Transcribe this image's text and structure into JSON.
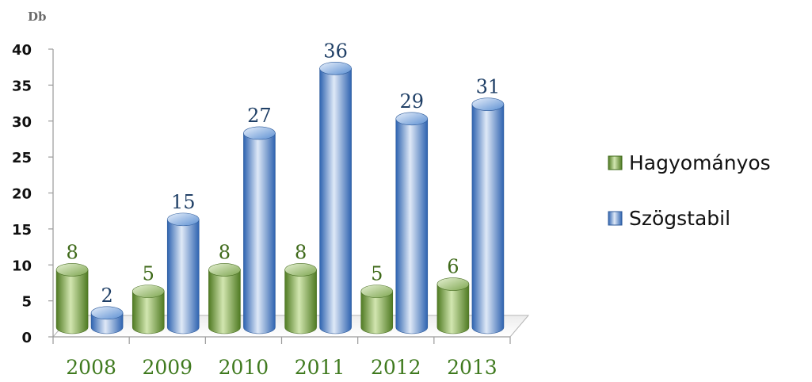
{
  "chart_data": {
    "type": "bar",
    "ylabel": "Db",
    "ylim": [
      0,
      40
    ],
    "yticks": [
      0,
      5,
      10,
      15,
      20,
      25,
      30,
      35,
      40
    ],
    "categories": [
      "2008",
      "2009",
      "2010",
      "2011",
      "2012",
      "2013"
    ],
    "series": [
      {
        "name": "Hagyományos",
        "values": [
          8,
          5,
          8,
          8,
          5,
          6
        ],
        "color": "#6f9a3c",
        "color_light": "#d2e6b0"
      },
      {
        "name": "Szögstabil",
        "values": [
          2,
          15,
          27,
          36,
          29,
          31
        ],
        "color": "#4a7fc4",
        "color_light": "#d6e3f5"
      }
    ],
    "legend": "right",
    "grid": false
  }
}
